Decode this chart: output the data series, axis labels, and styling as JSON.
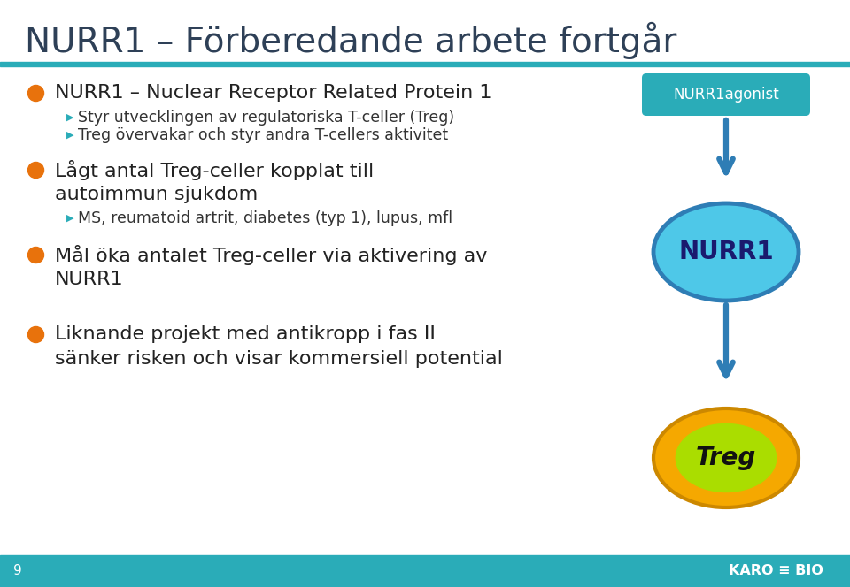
{
  "title": "NURR1 – Förberedande arbete fortgår",
  "title_color": "#2E4057",
  "title_fontsize": 28,
  "bg_color": "#FFFFFF",
  "header_bar_color": "#2AACB8",
  "footer_bar_color": "#2AACB8",
  "bullet_color": "#E8720C",
  "sub_bullet_color": "#2AACB8",
  "arrow_color": "#2E7DB5",
  "bullet1_main": "NURR1 – Nuclear Receptor Related Protein 1",
  "bullet1_sub1": "Styr utvecklingen av regulatoriska T-celler (Treg)",
  "bullet1_sub2": "Treg övervakar och styr andra T-cellers aktivitet",
  "bullet2_line1": "Lågt antal Treg-celler kopplat till",
  "bullet2_line2": "autoimmun sjukdom",
  "bullet2_sub1": "MS, reumatoid artrit, diabetes (typ 1), lupus, mfl",
  "bullet3_line1": "Mål öka antalet Treg-celler via aktivering av",
  "bullet3_line2": "NURR1",
  "bullet4_line1": "Liknande projekt med antikropp i fas II",
  "bullet4_line2": "sänker risken och visar kommersiell potential",
  "nurr1agonist_box_color": "#2AACB8",
  "nurr1agonist_text_color": "#FFFFFF",
  "nurr1agonist_text": "NURR1agonist",
  "nurr1_ellipse_color": "#4EC8E8",
  "nurr1_ellipse_border": "#2E7DB5",
  "nurr1_text": "NURR1",
  "nurr1_text_color": "#1A1A6E",
  "treg_outer_color": "#F5A800",
  "treg_inner_color": "#AADD00",
  "treg_border_color": "#CC8800",
  "treg_text": "Treg",
  "treg_text_color": "#111111",
  "page_number": "9",
  "footer_text_color": "#FFFFFF",
  "main_text_color": "#222222",
  "sub_text_color": "#333333",
  "sub_marker": "▶"
}
